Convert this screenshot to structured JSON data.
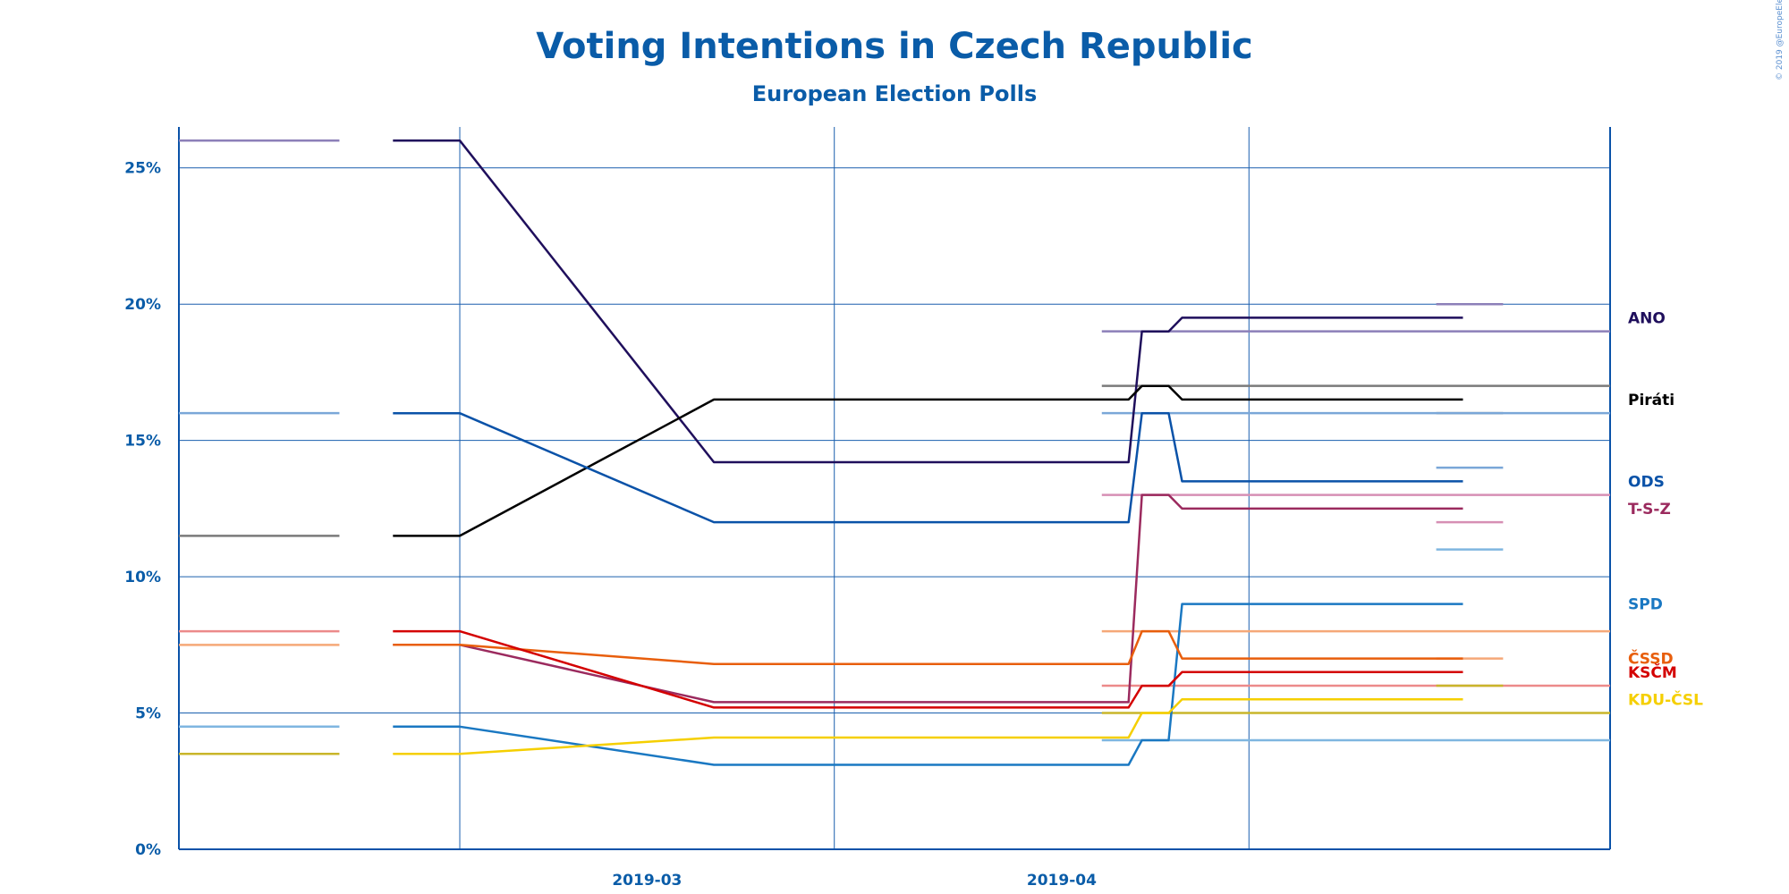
{
  "copyright": "© 2019 @EuropeElects",
  "chart_data": {
    "type": "line",
    "title": "Voting Intentions in Czech Republic",
    "subtitle": "European Election Polls",
    "xlabel": "",
    "ylabel": "",
    "x_ticks": [
      "2019-03",
      "2019-04"
    ],
    "y_ticks": [
      "0%",
      "5%",
      "10%",
      "15%",
      "20%",
      "25%"
    ],
    "ylim": [
      0,
      26.5
    ],
    "x_range": [
      "2019-01-25",
      "2019-05-12"
    ],
    "grid": true,
    "legend": "right",
    "series": [
      {
        "name": "ANO",
        "color": "#1f0f5c",
        "tick_color": "#8c7fb8",
        "label_y": 19.5,
        "x": [
          "2019-02-10",
          "2019-02-15",
          "2019-03-06",
          "2019-04-06",
          "2019-04-07",
          "2019-04-09",
          "2019-04-10",
          "2019-05-01"
        ],
        "values": [
          26,
          26,
          14.2,
          14.2,
          19,
          19,
          19.5,
          19.5
        ],
        "ticks": [
          {
            "x": [
              "2019-01-25",
              "2019-02-06"
            ],
            "y": 26
          },
          {
            "x": [
              "2019-04-04",
              "2019-05-12"
            ],
            "y": 19
          },
          {
            "x": [
              "2019-04-29",
              "2019-05-04"
            ],
            "y": 20
          }
        ]
      },
      {
        "name": "Piráti",
        "color": "#000000",
        "tick_color": "#7a7a7a",
        "label_y": 16.5,
        "x": [
          "2019-02-10",
          "2019-02-15",
          "2019-03-06",
          "2019-04-06",
          "2019-04-07",
          "2019-04-09",
          "2019-04-10",
          "2019-05-01"
        ],
        "values": [
          11.5,
          11.5,
          16.5,
          16.5,
          17,
          17,
          16.5,
          16.5
        ],
        "ticks": [
          {
            "x": [
              "2019-01-25",
              "2019-02-06"
            ],
            "y": 11.5
          },
          {
            "x": [
              "2019-04-04",
              "2019-05-12"
            ],
            "y": 17
          },
          {
            "x": [
              "2019-04-29",
              "2019-05-04"
            ],
            "y": 16
          }
        ]
      },
      {
        "name": "ODS",
        "color": "#0a52a8",
        "tick_color": "#7aa7d8",
        "label_y": 13.5,
        "x": [
          "2019-02-10",
          "2019-02-15",
          "2019-03-06",
          "2019-04-06",
          "2019-04-07",
          "2019-04-09",
          "2019-04-10",
          "2019-05-01"
        ],
        "values": [
          16,
          16,
          12,
          12,
          16,
          16,
          13.5,
          13.5
        ],
        "ticks": [
          {
            "x": [
              "2019-01-25",
              "2019-02-06"
            ],
            "y": 16
          },
          {
            "x": [
              "2019-04-04",
              "2019-05-12"
            ],
            "y": 16
          },
          {
            "x": [
              "2019-04-29",
              "2019-05-04"
            ],
            "y": 14
          }
        ]
      },
      {
        "name": "T-S-Z",
        "color": "#9b2a5e",
        "tick_color": "#d68fb4",
        "label_y": 12.5,
        "x": [
          "2019-02-10",
          "2019-02-15",
          "2019-03-06",
          "2019-04-06",
          "2019-04-07",
          "2019-04-09",
          "2019-04-10",
          "2019-05-01"
        ],
        "values": [
          7.5,
          7.5,
          5.4,
          5.4,
          13,
          13,
          12.5,
          12.5
        ],
        "ticks": [
          {
            "x": [
              "2019-04-04",
              "2019-05-12"
            ],
            "y": 13
          },
          {
            "x": [
              "2019-04-29",
              "2019-05-04"
            ],
            "y": 12
          }
        ]
      },
      {
        "name": "SPD",
        "color": "#1a78c2",
        "tick_color": "#7fb6e0",
        "label_y": 9,
        "x": [
          "2019-02-10",
          "2019-02-15",
          "2019-03-06",
          "2019-04-06",
          "2019-04-07",
          "2019-04-09",
          "2019-04-10",
          "2019-05-01"
        ],
        "values": [
          4.5,
          4.5,
          3.1,
          3.1,
          4,
          4,
          9,
          9
        ],
        "ticks": [
          {
            "x": [
              "2019-01-25",
              "2019-02-06"
            ],
            "y": 4.5
          },
          {
            "x": [
              "2019-04-04",
              "2019-05-12"
            ],
            "y": 4
          },
          {
            "x": [
              "2019-04-29",
              "2019-05-04"
            ],
            "y": 11
          }
        ]
      },
      {
        "name": "ČSSD",
        "color": "#e85e0c",
        "tick_color": "#f5a878",
        "label_y": 7,
        "x": [
          "2019-02-10",
          "2019-02-15",
          "2019-03-06",
          "2019-04-06",
          "2019-04-07",
          "2019-04-09",
          "2019-04-10",
          "2019-05-01"
        ],
        "values": [
          7.5,
          7.5,
          6.8,
          6.8,
          8,
          8,
          7,
          7
        ],
        "ticks": [
          {
            "x": [
              "2019-01-25",
              "2019-02-06"
            ],
            "y": 7.5
          },
          {
            "x": [
              "2019-04-04",
              "2019-05-12"
            ],
            "y": 8
          },
          {
            "x": [
              "2019-04-29",
              "2019-05-04"
            ],
            "y": 7
          }
        ]
      },
      {
        "name": "KSČM",
        "color": "#d40000",
        "tick_color": "#ec8a8a",
        "label_y": 6.5,
        "x": [
          "2019-02-10",
          "2019-02-15",
          "2019-03-06",
          "2019-04-06",
          "2019-04-07",
          "2019-04-09",
          "2019-04-10",
          "2019-05-01"
        ],
        "values": [
          8,
          8,
          5.2,
          5.2,
          6,
          6,
          6.5,
          6.5
        ],
        "ticks": [
          {
            "x": [
              "2019-01-25",
              "2019-02-06"
            ],
            "y": 8
          },
          {
            "x": [
              "2019-04-04",
              "2019-05-12"
            ],
            "y": 6
          }
        ]
      },
      {
        "name": "KDU-ČSL",
        "color": "#f5cf00",
        "tick_color": "#c9b52a",
        "label_y": 5.5,
        "x": [
          "2019-02-10",
          "2019-02-15",
          "2019-03-06",
          "2019-04-06",
          "2019-04-07",
          "2019-04-09",
          "2019-04-10",
          "2019-05-01"
        ],
        "values": [
          3.5,
          3.5,
          4.1,
          4.1,
          5,
          5,
          5.5,
          5.5
        ],
        "ticks": [
          {
            "x": [
              "2019-01-25",
              "2019-02-06"
            ],
            "y": 3.5
          },
          {
            "x": [
              "2019-04-04",
              "2019-05-12"
            ],
            "y": 5
          },
          {
            "x": [
              "2019-04-29",
              "2019-05-04"
            ],
            "y": 6
          }
        ]
      }
    ]
  }
}
